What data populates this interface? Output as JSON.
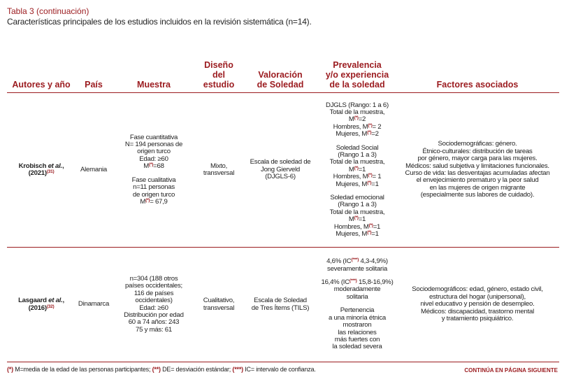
{
  "caption": "Tabla 3 (continuación)",
  "subtitle": "Características principales de los estudios incluidos en la revisión sistemática (n=14).",
  "table": {
    "headers": [
      [
        "Autores y año"
      ],
      [
        "País"
      ],
      [
        "Muestra"
      ],
      [
        "Diseño",
        "del estudio"
      ],
      [
        "Valoración",
        "de Soledad"
      ],
      [
        "Prevalencia",
        "y/o experiencia",
        "de la soledad"
      ],
      [
        "Factores asociados"
      ]
    ],
    "rows": [
      [
        [
          [
            [
              "Krobisch ",
              {
                "em": "et al."
              },
              ","
            ],
            [
              "(2021)",
              {
                "sup": "(31)"
              }
            ]
          ]
        ],
        [
          [
            "Alemania"
          ]
        ],
        [
          [
            "Fase cuantitativa",
            "N= 194 personas de",
            "origen turco",
            "Edad: ≥60",
            [
              "M",
              {
                "sup": "(*)"
              },
              "=68"
            ]
          ],
          [
            "Fase cualitativa",
            "n=11 personas",
            "de origen turco",
            [
              "M",
              {
                "sup": "(*)"
              },
              "= 67,9"
            ]
          ]
        ],
        [
          [
            "Mixto,",
            "transversal"
          ]
        ],
        [
          [
            "Escala de soledad de",
            "Jong Gierveld",
            "(DJGLS-6)"
          ]
        ],
        [
          [
            "DJGLS (Rango: 1 a 6)",
            "Total de la muestra,",
            [
              "M",
              {
                "sup": "(*)"
              },
              "=2"
            ],
            [
              "Hombres, M",
              {
                "sup": "(*)"
              },
              "= 2"
            ],
            [
              "Mujeres, M",
              {
                "sup": "(*)"
              },
              "=2"
            ]
          ],
          [
            "Soledad Social",
            "(Rango 1 a 3)",
            "Total de la muestra,",
            [
              "M",
              {
                "sup": "(*)"
              },
              "=1"
            ],
            [
              "Hombres, M",
              {
                "sup": "(*)"
              },
              "= 1"
            ],
            [
              "Mujeres, M",
              {
                "sup": "(*)"
              },
              "=1"
            ]
          ],
          [
            "Soledad emocional",
            "(Rango 1 a 3)",
            "Total de la muestra,",
            [
              "M",
              {
                "sup": "(*)"
              },
              "=1"
            ],
            [
              "Hombres, M",
              {
                "sup": "(*)"
              },
              "=1"
            ],
            [
              "Mujeres, M",
              {
                "sup": "(*)"
              },
              "=1"
            ]
          ]
        ],
        [
          [
            "Sociodemográficas: género.",
            "Étnico-culturales: distribución de tareas",
            "por género, mayor carga para las mujeres.",
            "Médicos: salud subjetiva y limitaciones funcionales.",
            "Curso de vida: las desventajas acumuladas afectan",
            "el envejecimiento prematuro y la peor salud",
            "en las mujeres de origen migrante",
            "(especialmente sus labores de cuidado)."
          ]
        ]
      ],
      [
        [
          [
            [
              "Lasgaard ",
              {
                "em": "et al."
              },
              ","
            ],
            [
              "(2016)",
              {
                "sup": "(32)"
              }
            ]
          ]
        ],
        [
          [
            "Dinamarca"
          ]
        ],
        [
          [
            "n=304 (188 otros",
            "países occidentales;",
            "116 de países",
            "occidentales)",
            "Edad: ≥60",
            "Distribución por edad",
            "60 a 74 años: 243",
            "75 y más: 61"
          ]
        ],
        [
          [
            "Cualitativo,",
            "transversal"
          ]
        ],
        [
          [
            "Escala de Soledad",
            "de Tres Ítems (TILS)"
          ]
        ],
        [
          [
            [
              "4,6% (IC",
              {
                "sup": "(***)"
              },
              " 4,3-4,9%)"
            ],
            "severamente solitaria"
          ],
          [
            [
              "16,4% (IC",
              {
                "sup": "(***)"
              },
              " 15,8-16,9%)"
            ],
            "moderadamente",
            "solitaria"
          ],
          [
            "Pertenencia",
            "a una minoría étnica",
            "mostraron",
            "las relaciones",
            "más fuertes con",
            "la soledad severa"
          ]
        ],
        [
          [
            "Sociodemográficos: edad, género, estado civil,",
            "estructura del hogar (unipersonal),",
            "nivel educativo y pensión de desempleo.",
            "Médicos: discapacidad, trastorno mental",
            "y tratamiento psiquiátrico."
          ]
        ]
      ]
    ]
  },
  "footnote": [
    {
      "mark": "(*)"
    },
    " M=media de la edad de las personas participantes; ",
    {
      "mark": "(**)"
    },
    " DE= desviación estándar; ",
    {
      "mark": "(***)"
    },
    " IC= intervalo de confianza."
  ],
  "continued": "CONTINÚA EN PÁGINA SIGUIENTE"
}
